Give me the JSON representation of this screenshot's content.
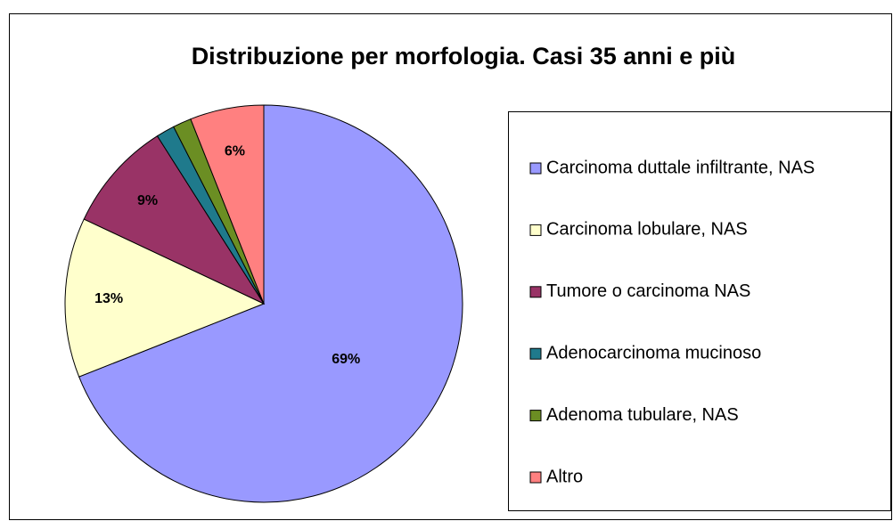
{
  "chart_data": {
    "type": "pie",
    "title": "Distribuzione per morfologia. Casi 35 anni e più",
    "categories": [
      "Carcinoma duttale infiltrante, NAS",
      "Carcinoma lobulare, NAS",
      "Tumore o carcinoma NAS",
      "Adenocarcinoma mucinoso",
      "Adenoma tubulare, NAS",
      "Altro"
    ],
    "values": [
      69,
      13,
      9,
      1.5,
      1.5,
      6
    ],
    "value_labels": [
      "69%",
      "13%",
      "9%",
      null,
      null,
      "6%"
    ],
    "colors": [
      "#9999ff",
      "#ffffcc",
      "#993366",
      "#1f7a8c",
      "#6b8e23",
      "#ff8080"
    ],
    "legend": "right"
  }
}
